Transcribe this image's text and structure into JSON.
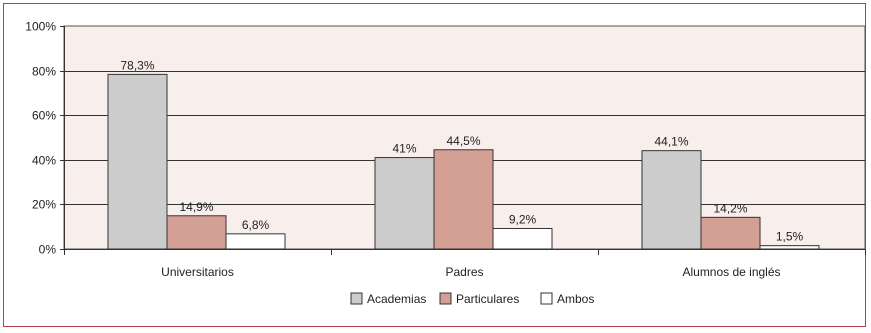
{
  "chart_data": {
    "type": "bar",
    "categories": [
      "Universitarios",
      "Padres",
      "Alumnos de inglés"
    ],
    "series": [
      {
        "name": "Academias",
        "values": [
          78.3,
          41,
          44.1
        ],
        "labels": [
          "78,3%",
          "41%",
          "44,1%"
        ],
        "color": "#cccccc"
      },
      {
        "name": "Particulares",
        "values": [
          14.9,
          44.5,
          14.2
        ],
        "labels": [
          "14,9%",
          "44,5%",
          "14,2%"
        ],
        "color": "#d4a096"
      },
      {
        "name": "Ambos",
        "values": [
          6.8,
          9.2,
          1.5
        ],
        "labels": [
          "6,8%",
          "9,2%",
          "1,5%"
        ],
        "color": "#ffffff"
      }
    ],
    "yticks": [
      "0%",
      "20%",
      "40%",
      "60%",
      "80%",
      "100%"
    ],
    "ylim": [
      0,
      100
    ],
    "grid": true,
    "legend": "bottom",
    "plot_background": "#f8eeec",
    "frame_color": "#b5404a"
  }
}
